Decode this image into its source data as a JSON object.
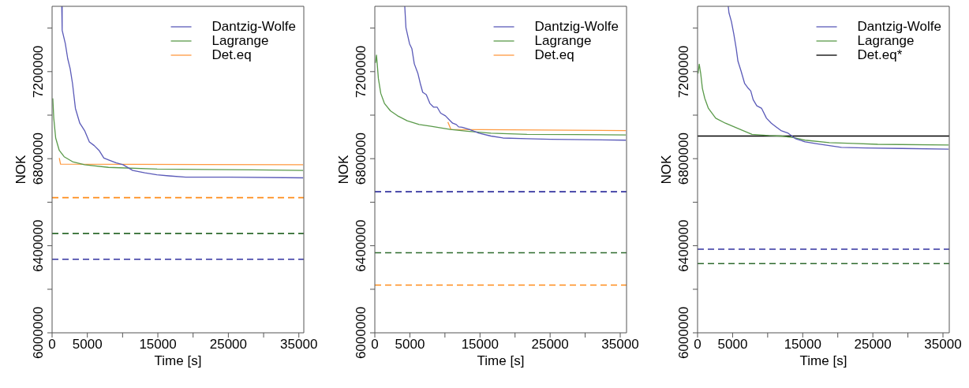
{
  "chart_data": [
    {
      "type": "line",
      "xlabel": "Time [s]",
      "ylabel": "NOK",
      "xlim": [
        0,
        35700
      ],
      "ylim": [
        6000000,
        7500000
      ],
      "xticks": [
        0,
        5000,
        {
          "value": 10000,
          "label": null
        },
        15000,
        {
          "value": 20000,
          "label": null
        },
        25000,
        {
          "value": 30000,
          "label": null
        },
        35000
      ],
      "yticks": [
        6000000,
        {
          "value": 6200000,
          "label": null
        },
        6400000,
        {
          "value": 6600000,
          "label": null
        },
        6800000,
        {
          "value": 7000000,
          "label": null
        },
        7200000,
        {
          "value": 7400000,
          "label": null
        }
      ],
      "legend": "top right",
      "series": [
        {
          "name": "Dantzig-Wolfe",
          "color": "#5a5ab8",
          "x": [
            1370,
            1430,
            1880,
            2220,
            2560,
            2900,
            3310,
            3930,
            4610,
            5290,
            5980,
            6660,
            7340,
            8030,
            9050,
            10070,
            11440,
            13150,
            14860,
            16560,
            18950,
            25100,
            35600
          ],
          "values": [
            7500000,
            7390000,
            7328000,
            7259000,
            7214000,
            7145000,
            7031000,
            6963000,
            6929000,
            6877000,
            6860000,
            6838000,
            6803000,
            6794000,
            6781000,
            6772000,
            6746000,
            6735000,
            6726000,
            6721000,
            6715000,
            6715000,
            6712000
          ]
        },
        {
          "name": "Lagrange",
          "color": "#5a9a4a",
          "x": [
            100,
            240,
            510,
            1020,
            1710,
            2900,
            4600,
            8000,
            14900,
            28500,
            35600
          ],
          "values": [
            7077000,
            6986000,
            6895000,
            6838000,
            6809000,
            6786000,
            6772000,
            6760000,
            6752000,
            6749000,
            6746000
          ]
        },
        {
          "name": "Det.eq",
          "color": "#ff9a40",
          "x": [
            1020,
            1200,
            35600
          ],
          "values": [
            6803000,
            6775000,
            6772000
          ]
        }
      ],
      "ref_lines": [
        {
          "axis": "y",
          "value": 6621000,
          "color": "#ff8c1a",
          "line_style": "dashed"
        },
        {
          "axis": "y",
          "value": 6456000,
          "color": "#2e6b2e",
          "line_style": "dashed"
        },
        {
          "axis": "y",
          "value": 6338000,
          "color": "#3333a0",
          "line_style": "dashed"
        }
      ]
    },
    {
      "type": "line",
      "xlabel": "Time [s]",
      "ylabel": "NOK",
      "xlim": [
        0,
        35900
      ],
      "ylim": [
        6000000,
        7500000
      ],
      "xticks": [
        0,
        5000,
        {
          "value": 10000,
          "label": null
        },
        15000,
        {
          "value": 20000,
          "label": null
        },
        25000,
        {
          "value": 30000,
          "label": null
        },
        35000
      ],
      "yticks": [
        6000000,
        {
          "value": 6200000,
          "label": null
        },
        6400000,
        {
          "value": 6600000,
          "label": null
        },
        6800000,
        {
          "value": 7000000,
          "label": null
        },
        7200000,
        {
          "value": 7400000,
          "label": null
        }
      ],
      "legend": "top right",
      "series": [
        {
          "name": "Dantzig-Wolfe",
          "color": "#5a5ab8",
          "x": [
            4270,
            4440,
            4950,
            5290,
            5630,
            6150,
            6490,
            6830,
            7340,
            7850,
            8370,
            8880,
            9390,
            10070,
            10760,
            11100,
            11610,
            11950,
            12460,
            13490,
            14860,
            16560,
            18270,
            21690,
            25100,
            35800
          ],
          "values": [
            7500000,
            7402000,
            7328000,
            7305000,
            7236000,
            7191000,
            7145000,
            7105000,
            7094000,
            7054000,
            7037000,
            7037000,
            7009000,
            6997000,
            6974000,
            6963000,
            6957000,
            6946000,
            6944000,
            6934000,
            6917000,
            6904000,
            6895000,
            6892000,
            6889000,
            6885000
          ]
        },
        {
          "name": "Lagrange",
          "color": "#5a9a4a",
          "x": [
            100,
            240,
            340,
            510,
            850,
            1370,
            2220,
            3240,
            4610,
            6320,
            8030,
            10760,
            13150,
            16560,
            21690,
            28520,
            35800
          ],
          "values": [
            7240000,
            7276000,
            7236000,
            7168000,
            7100000,
            7054000,
            7020000,
            6997000,
            6974000,
            6957000,
            6949000,
            6934000,
            6926000,
            6917000,
            6912000,
            6911000,
            6909000
          ]
        },
        {
          "name": "Det.eq",
          "color": "#ff9a40",
          "x": [
            10420,
            10860,
            35800
          ],
          "values": [
            6968000,
            6934000,
            6929000
          ]
        }
      ],
      "ref_lines": [
        {
          "axis": "y",
          "value": 6648000,
          "color": "#3333a0",
          "line_style": "dashed"
        },
        {
          "axis": "y",
          "value": 6368000,
          "color": "#2e6b2e",
          "line_style": "dashed"
        },
        {
          "axis": "y",
          "value": 6219000,
          "color": "#ff8c1a",
          "line_style": "dashed"
        }
      ]
    },
    {
      "type": "line",
      "xlabel": "Time [s]",
      "ylabel": "NOK",
      "xlim": [
        0,
        35900
      ],
      "ylim": [
        6000000,
        7500000
      ],
      "xticks": [
        0,
        5000,
        {
          "value": 10000,
          "label": null
        },
        15000,
        {
          "value": 20000,
          "label": null
        },
        25000,
        {
          "value": 30000,
          "label": null
        },
        35000
      ],
      "yticks": [
        6000000,
        {
          "value": 6200000,
          "label": null
        },
        6400000,
        {
          "value": 6600000,
          "label": null
        },
        6800000,
        {
          "value": 7000000,
          "label": null
        },
        7200000,
        {
          "value": 7400000,
          "label": null
        }
      ],
      "legend": "top right",
      "series": [
        {
          "name": "Dantzig-Wolfe",
          "color": "#5a5ab8",
          "x": [
            4380,
            4480,
            4830,
            5170,
            5520,
            5760,
            6210,
            6720,
            7240,
            7590,
            7930,
            8450,
            9140,
            9830,
            10520,
            11210,
            11900,
            12930,
            13960,
            15340,
            17070,
            18790,
            20520,
            23960,
            29140,
            35800
          ],
          "values": [
            7500000,
            7470000,
            7430000,
            7373000,
            7305000,
            7248000,
            7202000,
            7145000,
            7123000,
            7111000,
            7071000,
            7043000,
            7031000,
            6986000,
            6963000,
            6946000,
            6929000,
            6917000,
            6892000,
            6877000,
            6868000,
            6860000,
            6852000,
            6849000,
            6847000,
            6844000
          ]
        },
        {
          "name": "Lagrange",
          "color": "#5a9a4a",
          "x": [
            70,
            240,
            450,
            690,
            1030,
            1550,
            2590,
            3970,
            5690,
            7760,
            10170,
            11900,
            13620,
            15340,
            18790,
            22240,
            25690,
            35800
          ],
          "values": [
            7191000,
            7234000,
            7191000,
            7123000,
            7077000,
            7031000,
            6986000,
            6963000,
            6940000,
            6912000,
            6906000,
            6904000,
            6897000,
            6885000,
            6874000,
            6870000,
            6866000,
            6863000
          ]
        },
        {
          "name": "Det.eq*",
          "color": "#000000",
          "x": [
            0,
            35900
          ],
          "values": [
            6904000,
            6904000
          ]
        }
      ],
      "ref_lines": [
        {
          "axis": "y",
          "value": 6384000,
          "color": "#3333a0",
          "line_style": "dashed"
        },
        {
          "axis": "y",
          "value": 6318000,
          "color": "#2e6b2e",
          "line_style": "dashed"
        }
      ]
    }
  ]
}
